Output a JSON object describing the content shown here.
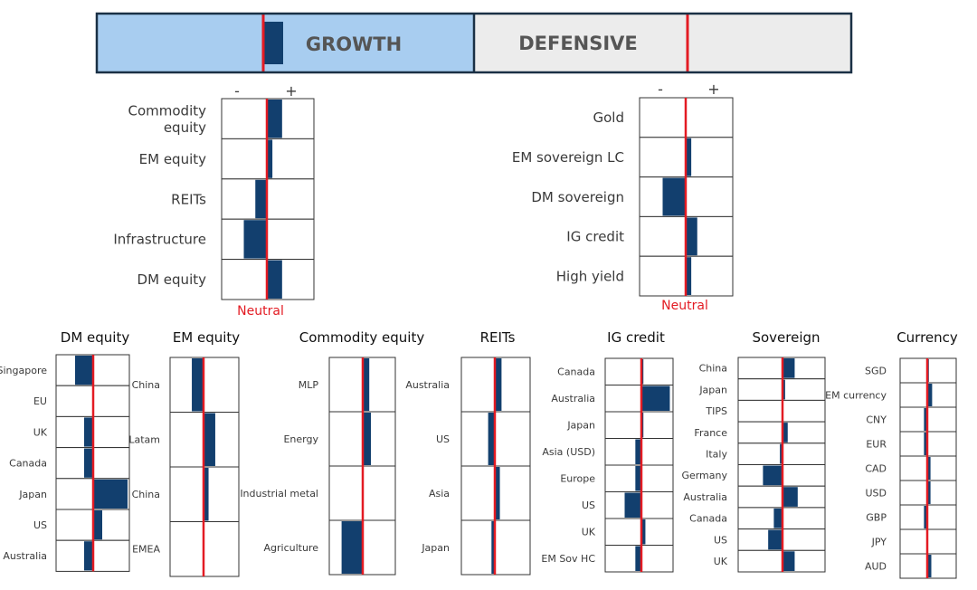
{
  "banner": {
    "growth_label": "GROWTH",
    "defensive_label": "DEFENSIVE",
    "growth_tilt": 0.2,
    "defensive_tilt": 0
  },
  "colors": {
    "bar": "#123f6e",
    "neutral_line": "#e31b23",
    "growth_fill": "#a8cdf0",
    "defensive_fill": "#ececec",
    "border": "#1a3045",
    "cell_border": "#333333",
    "text": "#3a3a3a"
  },
  "scale_labels": {
    "minus": "-",
    "plus": "+"
  },
  "neutral_label": "Neutral",
  "chart_data": [
    {
      "type": "bar",
      "title": "",
      "xlim": [
        -1,
        1
      ],
      "categories": [
        "Commodity equity",
        "EM equity",
        "REITs",
        "Infrastructure",
        "DM equity"
      ],
      "values": [
        0.33,
        0.12,
        -0.25,
        -0.5,
        0.33
      ]
    },
    {
      "type": "bar",
      "title": "",
      "xlim": [
        -1,
        1
      ],
      "categories": [
        "Gold",
        "EM sovereign LC",
        "DM sovereign",
        "IG credit",
        "High yield"
      ],
      "values": [
        0,
        0.12,
        -0.5,
        0.25,
        0.12
      ]
    },
    {
      "type": "bar",
      "title": "DM equity",
      "xlim": [
        -1,
        1
      ],
      "categories": [
        "Singapore",
        "EU",
        "UK",
        "Canada",
        "Japan",
        "US",
        "Australia"
      ],
      "values": [
        -0.5,
        0,
        -0.25,
        -0.25,
        0.95,
        0.25,
        -0.25
      ]
    },
    {
      "type": "bar",
      "title": "EM equity",
      "xlim": [
        -1,
        1
      ],
      "categories": [
        "China",
        "Latam",
        "China",
        "EMEA"
      ],
      "values": [
        -0.35,
        0.35,
        0.15,
        0
      ]
    },
    {
      "type": "bar",
      "title": "Commodity equity",
      "xlim": [
        -1,
        1
      ],
      "categories": [
        "MLP",
        "Energy",
        "Industrial metal",
        "Agriculture"
      ],
      "values": [
        0.2,
        0.25,
        0,
        -0.65
      ]
    },
    {
      "type": "bar",
      "title": "REITs",
      "xlim": [
        -1,
        1
      ],
      "categories": [
        "Australia",
        "US",
        "Asia",
        "Japan"
      ],
      "values": [
        0.2,
        -0.2,
        0.15,
        -0.1
      ]
    },
    {
      "type": "bar",
      "title": "IG credit",
      "xlim": [
        -1,
        1
      ],
      "categories": [
        "Canada",
        "Australia",
        "Japan",
        "Asia (USD)",
        "Europe",
        "US",
        "UK",
        "EM Sov HC"
      ],
      "values": [
        0.06,
        0.85,
        0.06,
        -0.18,
        -0.18,
        -0.5,
        0.12,
        -0.18
      ]
    },
    {
      "type": "bar",
      "title": "Sovereign",
      "xlim": [
        -1,
        1
      ],
      "categories": [
        "China",
        "Japan",
        "TIPS",
        "France",
        "Italy",
        "Germany",
        "Australia",
        "Canada",
        "US",
        "UK"
      ],
      "values": [
        0.28,
        0.06,
        0,
        0.12,
        -0.06,
        -0.45,
        0.35,
        -0.2,
        -0.33,
        0.28
      ]
    },
    {
      "type": "bar",
      "title": "Currency",
      "xlim": [
        -1,
        1
      ],
      "categories": [
        "SGD",
        "EM currency",
        "CNY",
        "EUR",
        "CAD",
        "USD",
        "GBP",
        "JPY",
        "AUD"
      ],
      "values": [
        0.06,
        0.18,
        -0.12,
        -0.12,
        0.12,
        0.12,
        -0.12,
        0,
        0.15
      ]
    }
  ]
}
